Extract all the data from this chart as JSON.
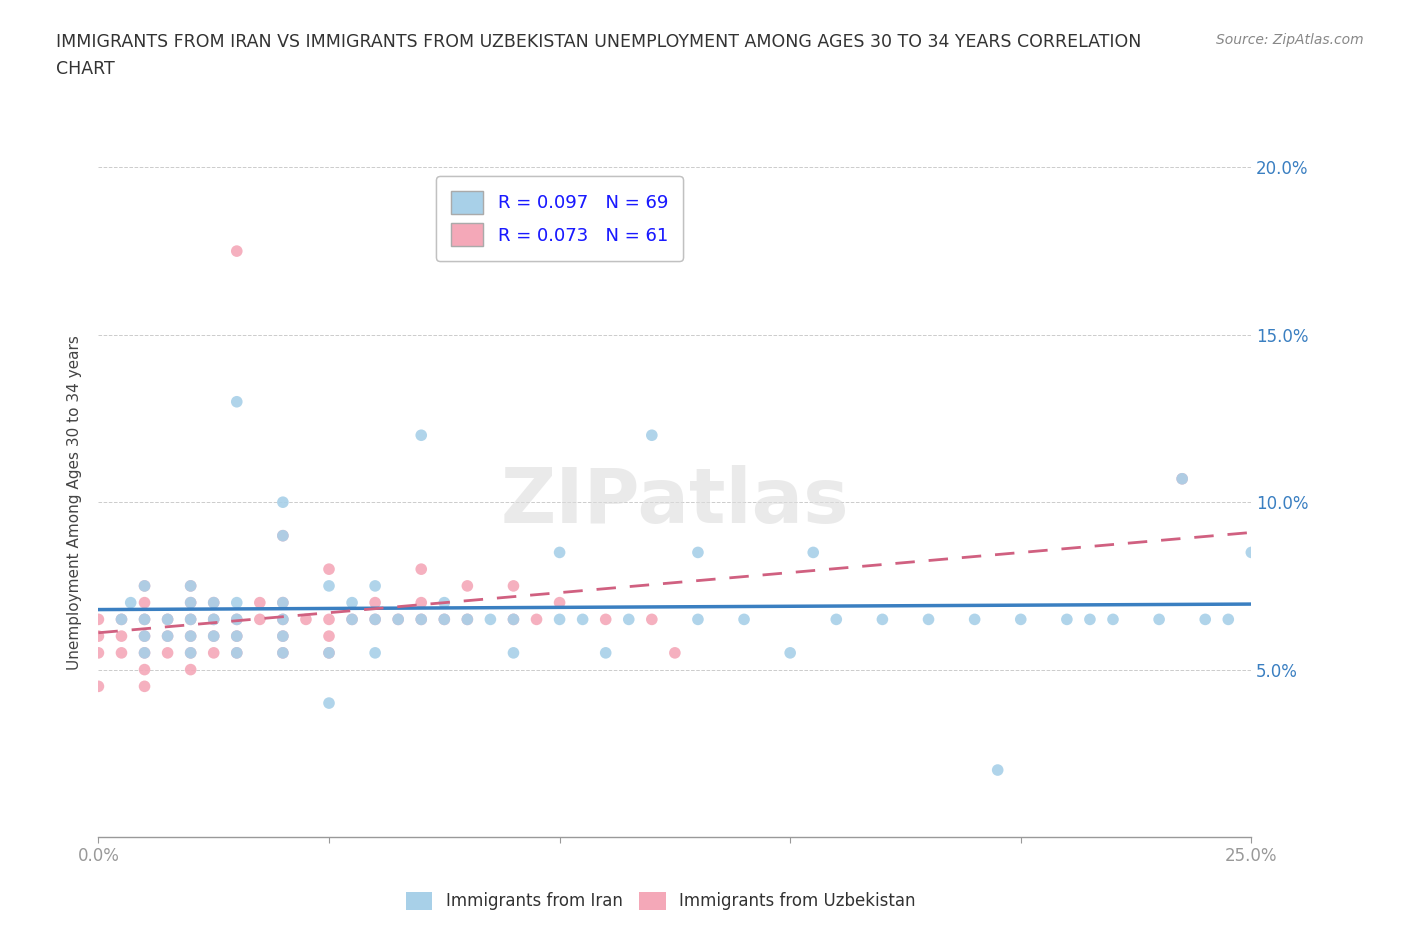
{
  "title_line1": "IMMIGRANTS FROM IRAN VS IMMIGRANTS FROM UZBEKISTAN UNEMPLOYMENT AMONG AGES 30 TO 34 YEARS CORRELATION",
  "title_line2": "CHART",
  "source": "Source: ZipAtlas.com",
  "ylabel": "Unemployment Among Ages 30 to 34 years",
  "xlim": [
    0.0,
    0.25
  ],
  "ylim": [
    0.0,
    0.2
  ],
  "color_iran": "#A8D0E8",
  "color_uzbekistan": "#F4A8B8",
  "line_iran_color": "#3A7FC1",
  "line_uzbek_color": "#D06080",
  "watermark": "ZIPatlas",
  "iran_x": [
    0.005,
    0.007,
    0.01,
    0.01,
    0.01,
    0.01,
    0.015,
    0.015,
    0.02,
    0.02,
    0.02,
    0.02,
    0.02,
    0.025,
    0.025,
    0.025,
    0.03,
    0.03,
    0.03,
    0.03,
    0.03,
    0.04,
    0.04,
    0.04,
    0.04,
    0.04,
    0.04,
    0.05,
    0.05,
    0.05,
    0.055,
    0.055,
    0.06,
    0.06,
    0.06,
    0.065,
    0.07,
    0.07,
    0.075,
    0.075,
    0.08,
    0.085,
    0.09,
    0.09,
    0.1,
    0.1,
    0.105,
    0.11,
    0.115,
    0.12,
    0.13,
    0.13,
    0.14,
    0.15,
    0.155,
    0.16,
    0.17,
    0.18,
    0.19,
    0.195,
    0.2,
    0.21,
    0.215,
    0.22,
    0.23,
    0.235,
    0.24,
    0.245,
    0.25
  ],
  "iran_y": [
    0.065,
    0.07,
    0.055,
    0.06,
    0.065,
    0.075,
    0.06,
    0.065,
    0.055,
    0.06,
    0.065,
    0.07,
    0.075,
    0.06,
    0.065,
    0.07,
    0.055,
    0.06,
    0.065,
    0.07,
    0.13,
    0.055,
    0.06,
    0.065,
    0.07,
    0.09,
    0.1,
    0.04,
    0.055,
    0.075,
    0.065,
    0.07,
    0.055,
    0.065,
    0.075,
    0.065,
    0.065,
    0.12,
    0.065,
    0.07,
    0.065,
    0.065,
    0.055,
    0.065,
    0.065,
    0.085,
    0.065,
    0.055,
    0.065,
    0.12,
    0.065,
    0.085,
    0.065,
    0.055,
    0.085,
    0.065,
    0.065,
    0.065,
    0.065,
    0.02,
    0.065,
    0.065,
    0.065,
    0.065,
    0.065,
    0.107,
    0.065,
    0.065,
    0.085
  ],
  "uzbek_x": [
    0.0,
    0.0,
    0.0,
    0.0,
    0.005,
    0.005,
    0.005,
    0.01,
    0.01,
    0.01,
    0.01,
    0.01,
    0.01,
    0.01,
    0.015,
    0.015,
    0.015,
    0.02,
    0.02,
    0.02,
    0.02,
    0.02,
    0.02,
    0.025,
    0.025,
    0.025,
    0.025,
    0.03,
    0.03,
    0.03,
    0.03,
    0.035,
    0.035,
    0.04,
    0.04,
    0.04,
    0.04,
    0.04,
    0.045,
    0.05,
    0.05,
    0.05,
    0.05,
    0.055,
    0.06,
    0.06,
    0.065,
    0.07,
    0.07,
    0.07,
    0.075,
    0.08,
    0.08,
    0.09,
    0.09,
    0.095,
    0.1,
    0.11,
    0.12,
    0.125,
    0.235
  ],
  "uzbek_y": [
    0.045,
    0.055,
    0.06,
    0.065,
    0.055,
    0.06,
    0.065,
    0.045,
    0.05,
    0.055,
    0.06,
    0.065,
    0.07,
    0.075,
    0.055,
    0.06,
    0.065,
    0.05,
    0.055,
    0.06,
    0.065,
    0.07,
    0.075,
    0.055,
    0.06,
    0.065,
    0.07,
    0.055,
    0.06,
    0.065,
    0.175,
    0.065,
    0.07,
    0.055,
    0.06,
    0.065,
    0.07,
    0.09,
    0.065,
    0.055,
    0.06,
    0.065,
    0.08,
    0.065,
    0.065,
    0.07,
    0.065,
    0.065,
    0.07,
    0.08,
    0.065,
    0.065,
    0.075,
    0.065,
    0.075,
    0.065,
    0.07,
    0.065,
    0.065,
    0.055,
    0.107
  ]
}
